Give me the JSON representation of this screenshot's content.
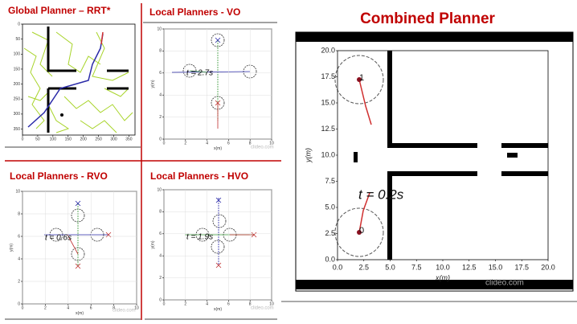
{
  "chart_data": [
    {
      "type": "scatter",
      "title": "Global Planner – RRT*",
      "xlim": [
        0,
        370
      ],
      "ylim": [
        370,
        0
      ],
      "xticks": [
        0,
        50,
        100,
        150,
        200,
        250,
        300,
        350
      ],
      "yticks": [
        0,
        50,
        100,
        150,
        200,
        250,
        300,
        350
      ]
    },
    {
      "type": "scatter",
      "title": "Local Planners - VO",
      "xlim": [
        0,
        10
      ],
      "ylim": [
        0,
        10
      ],
      "xticks": [
        0,
        2,
        4,
        6,
        8,
        10
      ],
      "yticks": [
        0,
        2,
        4,
        6,
        8,
        10
      ],
      "xlabel": "x(m)",
      "ylabel": "y(m)",
      "annotations": [
        "t = 2.7s",
        "clideo.com"
      ]
    },
    {
      "type": "scatter",
      "title": "Local Planners - RVO",
      "xlim": [
        0,
        10
      ],
      "ylim": [
        0,
        10
      ],
      "xticks": [
        0,
        2,
        4,
        6,
        8,
        10
      ],
      "yticks": [
        0,
        2,
        4,
        6,
        8,
        10
      ],
      "xlabel": "x(m)",
      "ylabel": "y(m)",
      "annotations": [
        "t = 0.6s",
        "clideo.com"
      ]
    },
    {
      "type": "scatter",
      "title": "Local Planners - HVO",
      "xlim": [
        0,
        10
      ],
      "ylim": [
        0,
        10
      ],
      "xticks": [
        0,
        2,
        4,
        6,
        8,
        10
      ],
      "yticks": [
        0,
        2,
        4,
        6,
        8,
        10
      ],
      "xlabel": "x(m)",
      "ylabel": "y(m)",
      "annotations": [
        "t = 1.9s",
        "clideo.com"
      ]
    },
    {
      "type": "scatter",
      "title": "Combined Planner",
      "xlim": [
        0,
        20
      ],
      "ylim": [
        0,
        20
      ],
      "xticks": [
        {
          "value": 0,
          "label": "0.0"
        },
        {
          "value": 2.5,
          "label": "2.5"
        },
        {
          "value": 5,
          "label": "5.0"
        },
        {
          "value": 7.5,
          "label": "7.5"
        },
        {
          "value": 10,
          "label": "10.0"
        },
        {
          "value": 12.5,
          "label": "12.5"
        },
        {
          "value": 15,
          "label": "15.0"
        },
        {
          "value": 17.5,
          "label": "17.5"
        },
        {
          "value": 20,
          "label": "20.0"
        }
      ],
      "yticks": [
        {
          "value": 0,
          "label": "0.0"
        },
        {
          "value": 2.5,
          "label": "2.5"
        },
        {
          "value": 5,
          "label": "5.0"
        },
        {
          "value": 7.5,
          "label": "7.5"
        },
        {
          "value": 10,
          "label": "10.0"
        },
        {
          "value": 12.5,
          "label": "12.5"
        },
        {
          "value": 15,
          "label": "15.0"
        },
        {
          "value": 17.5,
          "label": "17.5"
        },
        {
          "value": 20,
          "label": "20.0"
        }
      ],
      "xlabel": "x(m)",
      "ylabel": "y(m)",
      "annotations": [
        "t = 0.2s",
        "1",
        "0",
        "clideo.com"
      ]
    }
  ]
}
